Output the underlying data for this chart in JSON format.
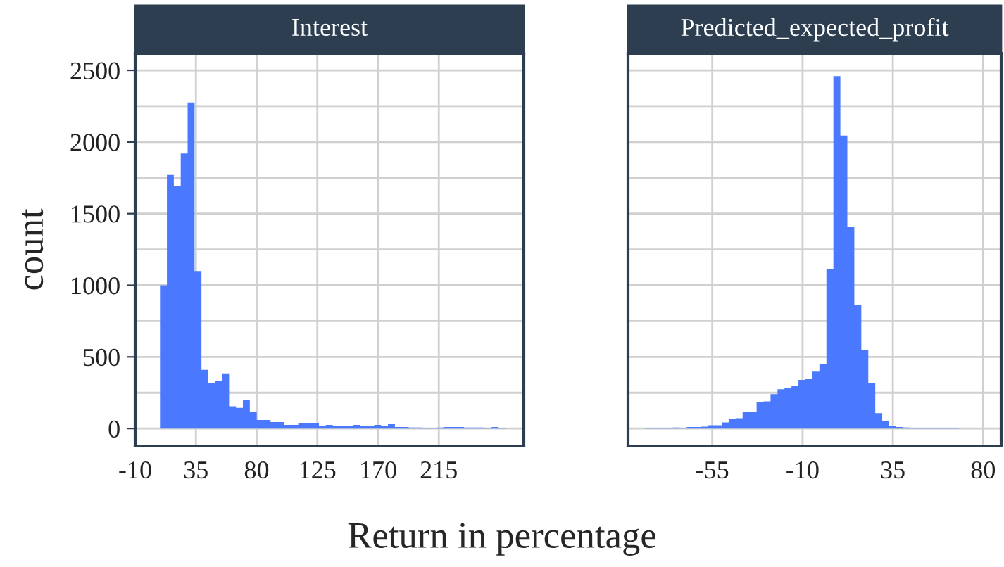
{
  "chart_data": [
    {
      "type": "histogram",
      "title": "Interest",
      "ylabel": "count",
      "xlabel": "Return in percentage",
      "color": "#4a78ff",
      "grid": true,
      "bins": [
        8.4,
        13.52,
        18.64,
        23.76,
        28.88,
        34.0,
        39.12,
        44.24,
        49.36,
        54.48,
        59.6,
        64.72,
        69.84,
        74.96,
        80.08,
        85.2,
        90.32,
        95.44,
        100.56,
        105.68,
        110.8,
        115.92,
        121.04,
        126.16,
        131.28,
        136.4,
        141.52,
        146.64,
        151.76,
        156.88,
        162.0,
        167.12,
        172.24,
        177.36,
        182.48,
        187.6,
        192.72,
        197.84,
        202.96,
        208.08,
        213.2,
        218.32,
        223.44,
        228.56,
        233.68,
        238.8,
        243.92,
        249.04,
        254.16,
        259.28,
        264.4
      ],
      "values": [
        1000,
        1770,
        1690,
        1920,
        2275,
        1100,
        410,
        315,
        330,
        385,
        155,
        145,
        200,
        115,
        60,
        60,
        45,
        45,
        25,
        25,
        35,
        35,
        35,
        15,
        25,
        20,
        15,
        15,
        25,
        15,
        15,
        25,
        15,
        30,
        10,
        10,
        7,
        7,
        3,
        3,
        7,
        10,
        10,
        10,
        7,
        7,
        7,
        3,
        10,
        3
      ],
      "xlim": [
        -10,
        278
      ],
      "ylim": [
        -122,
        2618
      ],
      "xticks": [
        -10,
        35,
        80,
        125,
        170,
        215
      ],
      "yticks": [
        0,
        500,
        1000,
        1500,
        2000,
        2500
      ]
    },
    {
      "type": "histogram",
      "title": "Predicted_expected_profit",
      "color": "#4a78ff",
      "grid": true,
      "tick_labels": "x",
      "bins": [
        -88.6,
        -85.12,
        -81.64,
        -78.16,
        -74.68,
        -71.2,
        -67.72,
        -64.24,
        -60.76,
        -57.28,
        -53.8,
        -50.32,
        -46.84,
        -43.36,
        -39.88,
        -36.4,
        -32.92,
        -29.44,
        -25.96,
        -22.48,
        -19.0,
        -15.52,
        -12.04,
        -8.56,
        -5.08,
        -1.6,
        1.88,
        5.36,
        8.84,
        12.32,
        15.8,
        19.28,
        22.76,
        26.24,
        29.72,
        33.2,
        36.68,
        40.16,
        43.64,
        47.12,
        50.6,
        54.08,
        57.56,
        61.04,
        64.52,
        68.0
      ],
      "values": [
        3,
        3,
        3,
        3,
        7,
        3,
        10,
        10,
        13,
        23,
        23,
        43,
        70,
        72,
        118,
        115,
        184,
        190,
        240,
        275,
        285,
        295,
        340,
        345,
        397,
        450,
        1115,
        2460,
        2045,
        1405,
        865,
        550,
        320,
        108,
        52,
        20,
        10,
        7,
        3,
        3,
        3,
        2,
        2,
        2,
        2
      ],
      "xlim": [
        -97,
        89
      ],
      "ylim": [
        -122,
        2618
      ],
      "xticks": [
        -55,
        -10,
        35,
        80
      ],
      "yticks": [
        0,
        500,
        1000,
        1500,
        2000,
        2500
      ]
    }
  ]
}
